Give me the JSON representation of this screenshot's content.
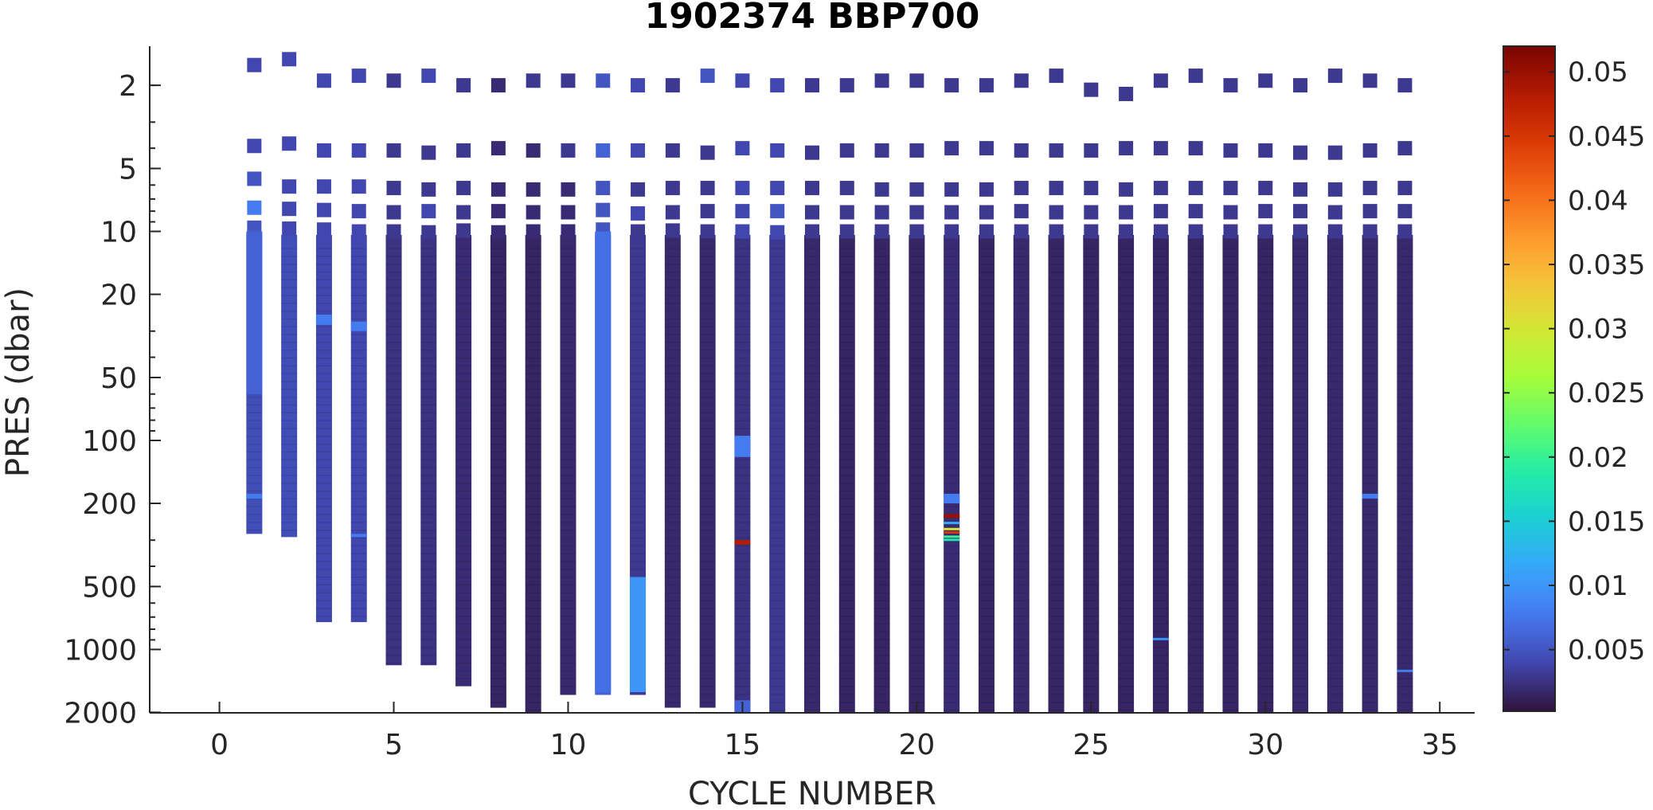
{
  "chart_data": {
    "type": "scatter",
    "title": "1902374 BBP700",
    "xlabel": "CYCLE NUMBER",
    "ylabel": "PRES (dbar)",
    "xlim": [
      -2,
      36
    ],
    "ylim": [
      1.3,
      2010
    ],
    "y_scale": "log",
    "y_direction": "reversed",
    "x_ticks": [
      0,
      5,
      10,
      15,
      20,
      25,
      30,
      35
    ],
    "y_ticks": [
      2,
      5,
      10,
      20,
      50,
      100,
      200,
      500,
      1000,
      2000
    ],
    "colorbar": {
      "colormap": "turbo",
      "range": [
        0.0002,
        0.052
      ],
      "ticks": [
        0.005,
        0.01,
        0.015,
        0.02,
        0.025,
        0.03,
        0.035,
        0.04,
        0.045,
        0.05
      ],
      "tick_labels": [
        "0.005",
        "0.01",
        "0.015",
        "0.02",
        "0.025",
        "0.03",
        "0.035",
        "0.04",
        "0.045",
        "0.05"
      ]
    },
    "cycles": [
      1,
      2,
      3,
      4,
      5,
      6,
      7,
      8,
      9,
      10,
      11,
      12,
      13,
      14,
      15,
      16,
      17,
      18,
      19,
      20,
      21,
      22,
      23,
      24,
      25,
      26,
      27,
      28,
      29,
      30,
      31,
      32,
      33,
      34
    ],
    "max_pressure_dbar": [
      280,
      290,
      740,
      740,
      1190,
      1190,
      1500,
      1900,
      2000,
      1650,
      1650,
      1650,
      1900,
      1900,
      2000,
      2010,
      2010,
      2010,
      2010,
      2010,
      2010,
      2010,
      2010,
      2010,
      2010,
      2010,
      2010,
      2010,
      2010,
      2010,
      2010,
      2010,
      2010,
      2010
    ],
    "surface_points": {
      "pressure_dbar": [
        [
          1.6,
          3.9,
          5.6,
          7.7,
          9.6
        ],
        [
          1.5,
          3.8,
          6.1,
          7.8,
          9.7
        ],
        [
          1.9,
          4.1,
          6.1,
          7.9,
          9.8
        ],
        [
          1.8,
          4.1,
          6.1,
          8.0,
          10.0
        ],
        [
          1.9,
          4.1,
          6.2,
          8.1,
          10.0
        ],
        [
          1.8,
          4.2,
          6.3,
          8.0,
          10.1
        ],
        [
          2.0,
          4.1,
          6.2,
          8.1,
          9.9
        ],
        [
          2.0,
          4.0,
          6.3,
          8.0,
          10.1
        ],
        [
          1.9,
          4.1,
          6.3,
          8.1,
          10.0
        ],
        [
          1.9,
          4.1,
          6.3,
          8.1,
          10.0
        ],
        [
          1.9,
          4.1,
          6.2,
          7.9,
          9.8
        ],
        [
          2.0,
          4.1,
          6.3,
          8.2,
          10.0
        ],
        [
          2.0,
          4.1,
          6.2,
          8.1,
          9.9
        ],
        [
          1.8,
          4.2,
          6.2,
          8.0,
          10.0
        ],
        [
          1.9,
          4.0,
          6.2,
          8.0,
          10.0
        ],
        [
          2.0,
          4.1,
          6.2,
          8.0,
          10.1
        ],
        [
          2.0,
          4.2,
          6.2,
          8.1,
          10.0
        ],
        [
          2.0,
          4.1,
          6.2,
          8.1,
          10.0
        ],
        [
          1.9,
          4.1,
          6.3,
          8.1,
          10.0
        ],
        [
          1.9,
          4.1,
          6.3,
          8.1,
          10.0
        ],
        [
          2.0,
          4.0,
          6.3,
          8.1,
          10.0
        ],
        [
          2.0,
          4.0,
          6.3,
          8.1,
          10.0
        ],
        [
          1.9,
          4.1,
          6.2,
          8.0,
          10.0
        ],
        [
          1.8,
          4.1,
          6.2,
          8.1,
          10.0
        ],
        [
          2.1,
          4.1,
          6.2,
          8.1,
          10.0
        ],
        [
          2.2,
          4.0,
          6.3,
          8.1,
          10.0
        ],
        [
          1.9,
          4.0,
          6.2,
          8.0,
          10.0
        ],
        [
          1.8,
          4.0,
          6.2,
          8.0,
          10.0
        ],
        [
          2.0,
          4.1,
          6.2,
          8.1,
          10.0
        ],
        [
          1.9,
          4.1,
          6.2,
          8.0,
          10.0
        ],
        [
          2.0,
          4.2,
          6.3,
          8.0,
          10.0
        ],
        [
          1.8,
          4.2,
          6.3,
          8.1,
          10.0
        ],
        [
          1.9,
          4.1,
          6.2,
          8.0,
          10.0
        ],
        [
          2.0,
          4.0,
          6.2,
          8.0,
          10.0
        ]
      ],
      "bbp700": [
        [
          0.004,
          0.004,
          0.005,
          0.008,
          0.005
        ],
        [
          0.004,
          0.004,
          0.004,
          0.004,
          0.004
        ],
        [
          0.004,
          0.004,
          0.004,
          0.004,
          0.004
        ],
        [
          0.004,
          0.004,
          0.004,
          0.004,
          0.004
        ],
        [
          0.003,
          0.003,
          0.003,
          0.003,
          0.003
        ],
        [
          0.004,
          0.003,
          0.003,
          0.004,
          0.003
        ],
        [
          0.003,
          0.003,
          0.003,
          0.003,
          0.003
        ],
        [
          0.002,
          0.002,
          0.002,
          0.002,
          0.002
        ],
        [
          0.003,
          0.002,
          0.002,
          0.002,
          0.002
        ],
        [
          0.003,
          0.003,
          0.002,
          0.002,
          0.002
        ],
        [
          0.005,
          0.006,
          0.005,
          0.005,
          0.005
        ],
        [
          0.004,
          0.004,
          0.003,
          0.004,
          0.003
        ],
        [
          0.003,
          0.003,
          0.003,
          0.003,
          0.003
        ],
        [
          0.005,
          0.003,
          0.003,
          0.003,
          0.003
        ],
        [
          0.004,
          0.004,
          0.004,
          0.004,
          0.004
        ],
        [
          0.004,
          0.004,
          0.004,
          0.005,
          0.004
        ],
        [
          0.003,
          0.003,
          0.003,
          0.003,
          0.003
        ],
        [
          0.003,
          0.003,
          0.003,
          0.003,
          0.003
        ],
        [
          0.003,
          0.003,
          0.003,
          0.003,
          0.003
        ],
        [
          0.003,
          0.003,
          0.003,
          0.003,
          0.003
        ],
        [
          0.003,
          0.003,
          0.003,
          0.003,
          0.003
        ],
        [
          0.003,
          0.003,
          0.003,
          0.003,
          0.003
        ],
        [
          0.003,
          0.003,
          0.003,
          0.003,
          0.003
        ],
        [
          0.003,
          0.003,
          0.003,
          0.003,
          0.003
        ],
        [
          0.003,
          0.003,
          0.003,
          0.003,
          0.003
        ],
        [
          0.003,
          0.003,
          0.003,
          0.003,
          0.003
        ],
        [
          0.003,
          0.003,
          0.003,
          0.003,
          0.003
        ],
        [
          0.003,
          0.003,
          0.003,
          0.003,
          0.003
        ],
        [
          0.003,
          0.003,
          0.003,
          0.003,
          0.003
        ],
        [
          0.003,
          0.003,
          0.003,
          0.003,
          0.003
        ],
        [
          0.003,
          0.003,
          0.003,
          0.003,
          0.003
        ],
        [
          0.003,
          0.003,
          0.003,
          0.003,
          0.003
        ],
        [
          0.003,
          0.003,
          0.003,
          0.003,
          0.003
        ],
        [
          0.003,
          0.003,
          0.003,
          0.003,
          0.003
        ]
      ]
    },
    "profile_background_bbp700": [
      0.0045,
      0.0045,
      0.004,
      0.004,
      0.0025,
      0.0025,
      0.002,
      0.0015,
      0.0015,
      0.0018,
      0.006,
      0.003,
      0.0018,
      0.0018,
      0.0025,
      0.003,
      0.0018,
      0.0015,
      0.0015,
      0.0015,
      0.002,
      0.0015,
      0.0018,
      0.0015,
      0.0015,
      0.0015,
      0.0015,
      0.0015,
      0.0015,
      0.0015,
      0.0018,
      0.0018,
      0.0018,
      0.0018
    ],
    "profile_features": [
      {
        "cycle": 1,
        "pressure_range": [
          10,
          60
        ],
        "bbp700": 0.006
      },
      {
        "cycle": 1,
        "pressure_range": [
          180,
          190
        ],
        "bbp700": 0.008
      },
      {
        "cycle": 3,
        "pressure_range": [
          25,
          28
        ],
        "bbp700": 0.008
      },
      {
        "cycle": 4,
        "pressure_range": [
          27,
          30
        ],
        "bbp700": 0.008
      },
      {
        "cycle": 4,
        "pressure_range": [
          280,
          290
        ],
        "bbp700": 0.008
      },
      {
        "cycle": 11,
        "pressure_range": [
          10,
          1600
        ],
        "bbp700": 0.007
      },
      {
        "cycle": 12,
        "pressure_range": [
          450,
          1600
        ],
        "bbp700": 0.01
      },
      {
        "cycle": 15,
        "pressure_range": [
          95,
          120
        ],
        "bbp700": 0.008
      },
      {
        "cycle": 15,
        "pressure_range": [
          300,
          315
        ],
        "bbp700": 0.048
      },
      {
        "cycle": 15,
        "pressure_range": [
          1750,
          2000
        ],
        "bbp700": 0.006
      },
      {
        "cycle": 21,
        "pressure_range": [
          180,
          200
        ],
        "bbp700": 0.008
      },
      {
        "cycle": 21,
        "pressure_range": [
          225,
          235
        ],
        "bbp700": 0.05
      },
      {
        "cycle": 21,
        "pressure_range": [
          245,
          250
        ],
        "bbp700": 0.012
      },
      {
        "cycle": 21,
        "pressure_range": [
          262,
          268
        ],
        "bbp700": 0.03
      },
      {
        "cycle": 21,
        "pressure_range": [
          272,
          278
        ],
        "bbp700": 0.045
      },
      {
        "cycle": 21,
        "pressure_range": [
          285,
          290
        ],
        "bbp700": 0.02
      },
      {
        "cycle": 21,
        "pressure_range": [
          295,
          302
        ],
        "bbp700": 0.018
      },
      {
        "cycle": 27,
        "pressure_range": [
          880,
          900
        ],
        "bbp700": 0.01
      },
      {
        "cycle": 33,
        "pressure_range": [
          180,
          190
        ],
        "bbp700": 0.008
      },
      {
        "cycle": 34,
        "pressure_range": [
          1250,
          1280
        ],
        "bbp700": 0.008
      }
    ]
  }
}
